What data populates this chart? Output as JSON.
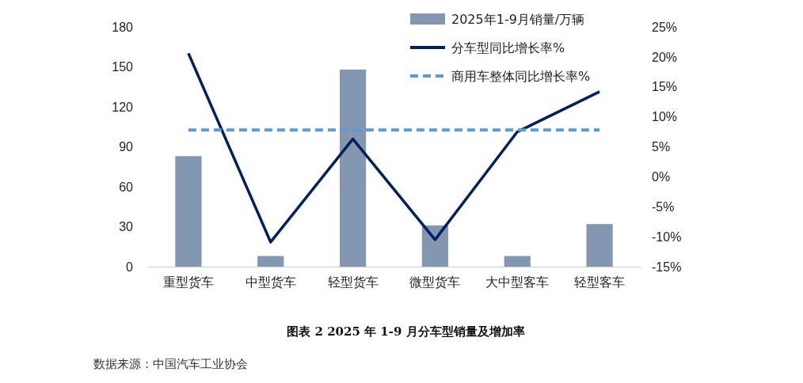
{
  "chart_data": {
    "type": "bar",
    "title": "图表 2 2025 年 1-9 月分车型销量及增加率",
    "annotations": [
      "数据来源：中国汽车工业协会"
    ],
    "categories": [
      "重型货车",
      "中型货车",
      "轻型货车",
      "微型货车",
      "大中型客车",
      "轻型客车"
    ],
    "series": [
      {
        "name": "2025年1-9月销量/万辆",
        "color": "#8497b0",
        "values": [
          83,
          8,
          148,
          31,
          8,
          32
        ]
      },
      {
        "name": "分车型同比增长率%",
        "type": "line",
        "axis": "y2",
        "color": "#002060",
        "line_style": "solid",
        "values": [
          20.6,
          -10.9,
          6.3,
          -10.5,
          7.5,
          14.2
        ]
      },
      {
        "name": "商用车整体同比增长率%",
        "type": "line",
        "axis": "y2",
        "color": "#5b9bd5",
        "line_style": "dashed",
        "values": [
          7.8,
          7.8,
          7.8,
          7.8,
          7.8,
          7.8
        ]
      }
    ],
    "ylim": [
      0,
      180
    ],
    "yticks": [
      0,
      30,
      60,
      90,
      120,
      150,
      180
    ],
    "y2lim": [
      -15,
      25
    ],
    "y2ticks": [
      {
        "value": -15,
        "label": "-15%"
      },
      {
        "value": -10,
        "label": "-10%"
      },
      {
        "value": -5,
        "label": "-5%"
      },
      {
        "value": 0,
        "label": "0%"
      },
      {
        "value": 5,
        "label": "5%"
      },
      {
        "value": 10,
        "label": "10%"
      },
      {
        "value": 15,
        "label": "15%"
      },
      {
        "value": 20,
        "label": "20%"
      },
      {
        "value": 25,
        "label": "25%"
      }
    ],
    "grid": false,
    "legend": "top right",
    "marker": "none"
  }
}
